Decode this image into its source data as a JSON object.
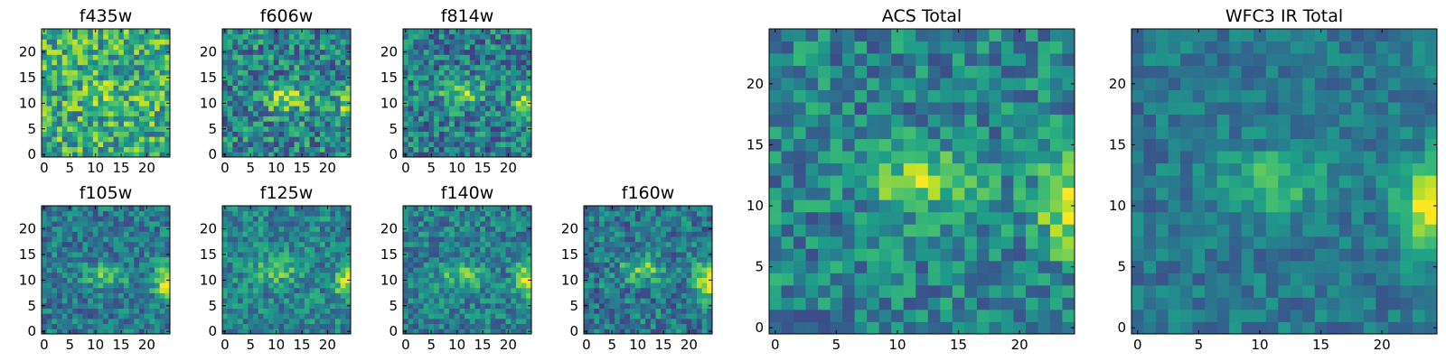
{
  "chart_data": [
    {
      "type": "heatmap",
      "title": "f435w",
      "colormap": "viridis",
      "xticks": [
        "0",
        "5",
        "10",
        "15",
        "20"
      ],
      "yticks": [
        "0",
        "5",
        "10",
        "15",
        "20"
      ],
      "xlim": [
        0,
        25
      ],
      "ylim": [
        0,
        25
      ],
      "grid_size": 25,
      "signal": {
        "cx": 12,
        "cy": 12,
        "amp": 0.12,
        "edge_amp": 0.0
      },
      "noise": 0.3,
      "base": 0.62,
      "seed": 11
    },
    {
      "type": "heatmap",
      "title": "f606w",
      "colormap": "viridis",
      "xticks": [
        "0",
        "5",
        "10",
        "15",
        "20"
      ],
      "yticks": [
        "0",
        "5",
        "10",
        "15",
        "20"
      ],
      "xlim": [
        0,
        25
      ],
      "ylim": [
        0,
        25
      ],
      "grid_size": 25,
      "signal": {
        "cx": 12,
        "cy": 11,
        "amp": 0.45,
        "edge_amp": 0.35
      },
      "noise": 0.28,
      "base": 0.45,
      "seed": 23
    },
    {
      "type": "heatmap",
      "title": "f814w",
      "colormap": "viridis",
      "xticks": [
        "0",
        "5",
        "10",
        "15",
        "20"
      ],
      "yticks": [
        "0",
        "5",
        "10",
        "15",
        "20"
      ],
      "xlim": [
        0,
        25
      ],
      "ylim": [
        0,
        25
      ],
      "grid_size": 25,
      "signal": {
        "cx": 11,
        "cy": 12,
        "amp": 0.35,
        "edge_amp": 0.5
      },
      "noise": 0.26,
      "base": 0.42,
      "seed": 37
    },
    {
      "type": "heatmap",
      "title": "f105w",
      "colormap": "viridis",
      "xticks": [
        "0",
        "5",
        "10",
        "15",
        "20"
      ],
      "yticks": [
        "0",
        "5",
        "10",
        "15",
        "20"
      ],
      "xlim": [
        0,
        25
      ],
      "ylim": [
        0,
        25
      ],
      "grid_size": 25,
      "signal": {
        "cx": 12,
        "cy": 11,
        "amp": 0.3,
        "edge_amp": 0.6
      },
      "noise": 0.2,
      "base": 0.4,
      "seed": 41
    },
    {
      "type": "heatmap",
      "title": "f125w",
      "colormap": "viridis",
      "xticks": [
        "0",
        "5",
        "10",
        "15",
        "20"
      ],
      "yticks": [
        "0",
        "5",
        "10",
        "15",
        "20"
      ],
      "xlim": [
        0,
        25
      ],
      "ylim": [
        0,
        25
      ],
      "grid_size": 25,
      "signal": {
        "cx": 10,
        "cy": 12,
        "amp": 0.3,
        "edge_amp": 0.5
      },
      "noise": 0.2,
      "base": 0.45,
      "seed": 53
    },
    {
      "type": "heatmap",
      "title": "f140w",
      "colormap": "viridis",
      "xticks": [
        "0",
        "5",
        "10",
        "15",
        "20"
      ],
      "yticks": [
        "0",
        "5",
        "10",
        "15",
        "20"
      ],
      "xlim": [
        0,
        25
      ],
      "ylim": [
        0,
        25
      ],
      "grid_size": 25,
      "signal": {
        "cx": 11,
        "cy": 11,
        "amp": 0.3,
        "edge_amp": 0.55
      },
      "noise": 0.2,
      "base": 0.43,
      "seed": 67
    },
    {
      "type": "heatmap",
      "title": "f160w",
      "colormap": "viridis",
      "xticks": [
        "0",
        "5",
        "10",
        "15",
        "20"
      ],
      "yticks": [
        "0",
        "5",
        "10",
        "15",
        "20"
      ],
      "xlim": [
        0,
        25
      ],
      "ylim": [
        0,
        25
      ],
      "grid_size": 25,
      "signal": {
        "cx": 11,
        "cy": 12,
        "amp": 0.35,
        "edge_amp": 0.65
      },
      "noise": 0.22,
      "base": 0.4,
      "seed": 79
    },
    {
      "type": "heatmap",
      "title": "ACS Total",
      "colormap": "viridis",
      "xticks": [
        "0",
        "5",
        "10",
        "15",
        "20"
      ],
      "yticks": [
        "0",
        "5",
        "10",
        "15",
        "20"
      ],
      "xlim": [
        0,
        25
      ],
      "ylim": [
        0,
        25
      ],
      "grid_size": 25,
      "signal": {
        "cx": 12,
        "cy": 12,
        "amp": 0.4,
        "edge_amp": 0.5
      },
      "noise": 0.22,
      "base": 0.45,
      "seed": 97
    },
    {
      "type": "heatmap",
      "title": "WFC3 IR Total",
      "colormap": "viridis",
      "xticks": [
        "0",
        "5",
        "10",
        "15",
        "20"
      ],
      "yticks": [
        "0",
        "5",
        "10",
        "15",
        "20"
      ],
      "xlim": [
        0,
        25
      ],
      "ylim": [
        0,
        25
      ],
      "grid_size": 25,
      "signal": {
        "cx": 11,
        "cy": 12,
        "amp": 0.3,
        "edge_amp": 0.6
      },
      "noise": 0.14,
      "base": 0.4,
      "seed": 113
    }
  ]
}
